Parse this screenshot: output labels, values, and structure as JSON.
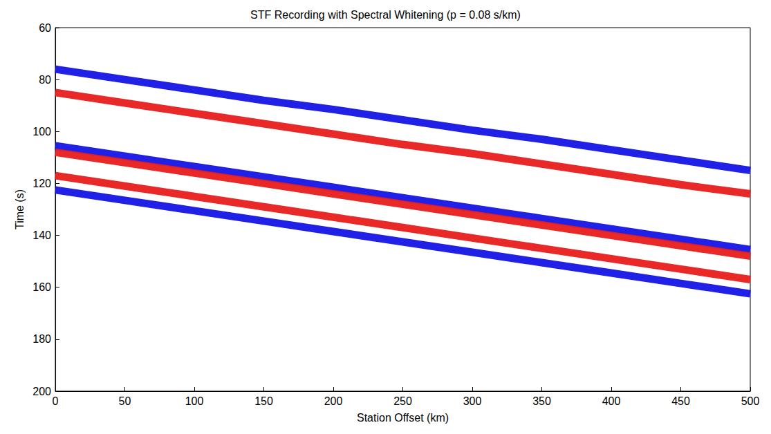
{
  "chart_data": {
    "type": "line",
    "title": "STF Recording with Spectral Whitening (p = 0.08 s/km)",
    "x_label": "Station Offset (km)",
    "y_label": "Time (s)",
    "x": [
      0,
      50,
      100,
      150,
      200,
      250,
      300,
      350,
      400,
      450,
      500
    ],
    "series": [
      {
        "color": "#e81c1c",
        "values": [
          85,
          89,
          93,
          97,
          101,
          105,
          108.5,
          112.5,
          116.5,
          120.5,
          124
        ]
      },
      {
        "color": "#1414e6",
        "values": [
          76,
          80,
          84,
          88,
          91.5,
          95.5,
          99.5,
          103,
          107,
          111,
          115
        ]
      },
      {
        "color": "#1414e6",
        "values": [
          105.5,
          109.5,
          113.5,
          117.5,
          121.5,
          125.5,
          129.5,
          133.5,
          137.5,
          141.5,
          145.5
        ]
      },
      {
        "color": "#e81c1c",
        "values": [
          108,
          112,
          116,
          120,
          124,
          128,
          132,
          136,
          140,
          144,
          148
        ]
      },
      {
        "color": "#e81c1c",
        "values": [
          117,
          121,
          125,
          129,
          133,
          137,
          141,
          145,
          149,
          153,
          157
        ]
      },
      {
        "color": "#1414e6",
        "values": [
          122.5,
          126.5,
          130.5,
          134.5,
          138.5,
          142.5,
          146.5,
          150.5,
          154.5,
          158.5,
          162.5
        ]
      }
    ],
    "xlim": [
      0,
      500
    ],
    "xticks": [
      0,
      50,
      100,
      150,
      200,
      250,
      300,
      350,
      400,
      450,
      500
    ],
    "ylim": [
      200,
      60
    ],
    "yticks": [
      60,
      80,
      100,
      120,
      140,
      160,
      180,
      200
    ],
    "grid": false
  }
}
